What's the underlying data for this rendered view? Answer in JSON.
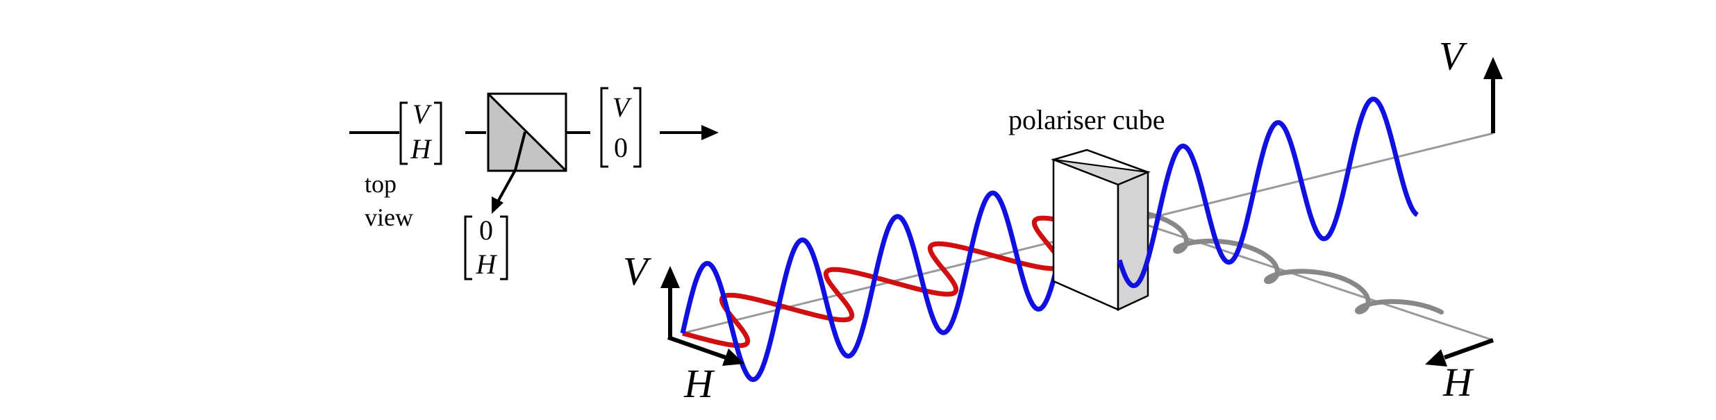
{
  "top_view": {
    "input_vector": [
      "V",
      "H"
    ],
    "output_vector": [
      "V",
      "0"
    ],
    "reflected_vector": [
      "0",
      "H"
    ],
    "caption_line1": "top",
    "caption_line2": "view"
  },
  "main": {
    "cube_label": "polariser cube",
    "left_axes": {
      "v": "V",
      "h": "H"
    },
    "right_axes": {
      "v": "V",
      "h": "H"
    }
  },
  "colors": {
    "vertical_wave": "#1010e0",
    "horizontal_wave": "#d01010",
    "reflected_wave": "#888888",
    "axis": "#999999",
    "cube_face": "#d0d0d0"
  }
}
